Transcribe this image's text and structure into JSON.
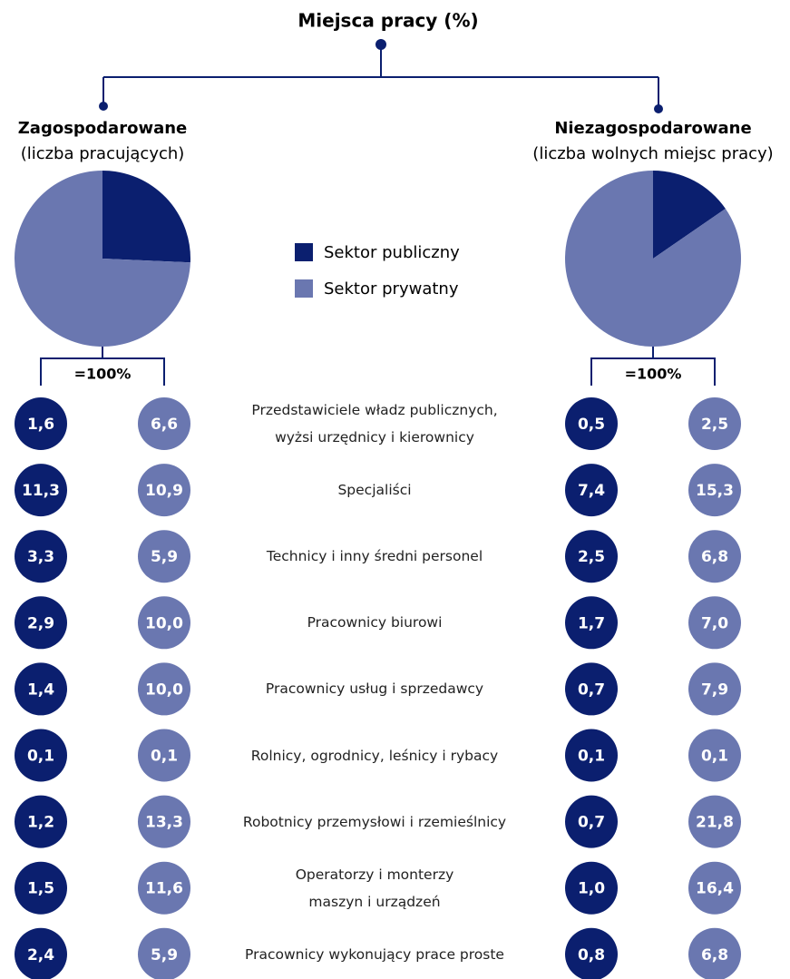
{
  "title": "Miejsca pracy (%)",
  "occupations": [
    "Przedstawiciele władz publicznych,\nwyżsi urzędnicy i kierownicy",
    "Specjaliści",
    "Technicy i inny średni personel",
    "Pracownicy biurowi",
    "Pracownicy usług i sprzedawcy",
    "Rolnicy, ogrodnicy, leśnicy i rybacy",
    "Robotnicy przemysłowi i rzemieślnicy",
    "Operatorzy i monterzy\nmaszyn i urządzeń",
    "Pracownicy wykonujący prace proste"
  ],
  "chart_data": [
    {
      "type": "pie",
      "title": "Zagospodarowane",
      "subtitle": "(liczba pracujących)",
      "total_label": "=100%",
      "categories": [
        "Sektor publiczny",
        "Sektor prywatny"
      ],
      "values": [
        25.7,
        74.3
      ],
      "colors": [
        "#0b1f6f",
        "#6a77b0"
      ],
      "breakdown": {
        "series": [
          {
            "name": "Sektor publiczny",
            "values": [
              1.6,
              11.3,
              3.3,
              2.9,
              1.4,
              0.1,
              1.2,
              1.5,
              2.4
            ],
            "value_labels": [
              "1,6",
              "11,3",
              "3,3",
              "2,9",
              "1,4",
              "0,1",
              "1,2",
              "1,5",
              "2,4"
            ]
          },
          {
            "name": "Sektor prywatny",
            "values": [
              6.6,
              10.9,
              5.9,
              10.0,
              10.0,
              0.1,
              13.3,
              11.6,
              5.9
            ],
            "value_labels": [
              "6,6",
              "10,9",
              "5,9",
              "10,0",
              "10,0",
              "0,1",
              "13,3",
              "11,6",
              "5,9"
            ]
          }
        ]
      }
    },
    {
      "type": "pie",
      "title": "Niezagospodarowane",
      "subtitle": "(liczba wolnych miejsc pracy)",
      "total_label": "=100%",
      "categories": [
        "Sektor publiczny",
        "Sektor prywatny"
      ],
      "values": [
        15.4,
        84.6
      ],
      "colors": [
        "#0b1f6f",
        "#6a77b0"
      ],
      "breakdown": {
        "series": [
          {
            "name": "Sektor publiczny",
            "values": [
              0.5,
              7.4,
              2.5,
              1.7,
              0.7,
              0.1,
              0.7,
              1.0,
              0.8
            ],
            "value_labels": [
              "0,5",
              "7,4",
              "2,5",
              "1,7",
              "0,7",
              "0,1",
              "0,7",
              "1,0",
              "0,8"
            ]
          },
          {
            "name": "Sektor prywatny",
            "values": [
              2.5,
              15.3,
              6.8,
              7.0,
              7.9,
              0.1,
              21.8,
              16.4,
              6.8
            ],
            "value_labels": [
              "2,5",
              "15,3",
              "6,8",
              "7,0",
              "7,9",
              "0,1",
              "21,8",
              "16,4",
              "6,8"
            ]
          }
        ]
      }
    }
  ]
}
